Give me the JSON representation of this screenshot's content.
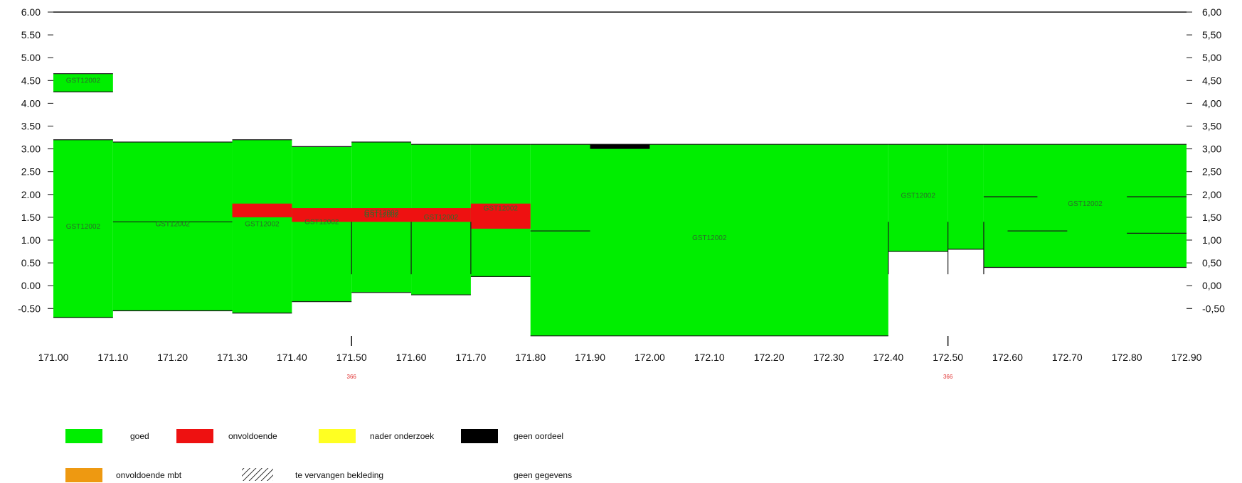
{
  "chart_data": {
    "type": "bar",
    "x_ticks": [
      "171.00",
      "171.10",
      "171.20",
      "171.30",
      "171.40",
      "171.50",
      "171.60",
      "171.70",
      "171.80",
      "171.90",
      "172.00",
      "172.10",
      "172.20",
      "172.30",
      "172.40",
      "172.50",
      "172.60",
      "172.70",
      "172.80",
      "172.90"
    ],
    "y_ticks_left": [
      "6.00",
      "5.50",
      "5.00",
      "4.50",
      "4.00",
      "3.50",
      "3.00",
      "2.50",
      "2.00",
      "1.50",
      "1.00",
      "0.50",
      "0.00",
      "-0.50"
    ],
    "y_ticks_right": [
      "6,00",
      "5,50",
      "5,00",
      "4,50",
      "4,00",
      "3,50",
      "3,00",
      "2,50",
      "2,00",
      "1,50",
      "1,00",
      "0,50",
      "0,00",
      "-0,50"
    ],
    "xlim": [
      171.0,
      172.9
    ],
    "ylim": [
      -0.5,
      6.0
    ],
    "markers": [
      {
        "x": 171.5,
        "label": "366"
      },
      {
        "x": 172.5,
        "label": "366"
      }
    ],
    "segments": [
      {
        "x0": 171.0,
        "x1": 171.1,
        "y0": 4.25,
        "y1": 4.65,
        "status": "goed",
        "label": "GST12002"
      },
      {
        "x0": 171.0,
        "x1": 171.1,
        "y0": -0.7,
        "y1": 3.2,
        "status": "goed",
        "label": "GST12002"
      },
      {
        "x0": 171.1,
        "x1": 171.3,
        "y0": -0.55,
        "y1": 3.15,
        "status": "goed",
        "label": "GST12002"
      },
      {
        "x0": 171.3,
        "x1": 171.4,
        "y0": -0.6,
        "y1": 3.2,
        "status": "goed",
        "label": "GST12002"
      },
      {
        "x0": 171.4,
        "x1": 171.5,
        "y0": -0.35,
        "y1": 3.05,
        "status": "goed",
        "label": "GST12002"
      },
      {
        "x0": 171.5,
        "x1": 171.6,
        "y0": -0.15,
        "y1": 3.15,
        "status": "goed",
        "label": "GST12002"
      },
      {
        "x0": 171.6,
        "x1": 171.7,
        "y0": -0.2,
        "y1": 3.1,
        "status": "goed",
        "label": "GST12002"
      },
      {
        "x0": 171.7,
        "x1": 171.8,
        "y0": 0.2,
        "y1": 3.1,
        "status": "goed",
        "label": "GST12002"
      },
      {
        "x0": 171.8,
        "x1": 172.4,
        "y0": -1.1,
        "y1": 3.1,
        "status": "goed",
        "label": "GST12002"
      },
      {
        "x0": 172.4,
        "x1": 172.5,
        "y0": 0.75,
        "y1": 3.1,
        "status": "goed",
        "label": "GST12002"
      },
      {
        "x0": 172.5,
        "x1": 172.56,
        "y0": 0.8,
        "y1": 3.1,
        "status": "goed",
        "label": ""
      },
      {
        "x0": 172.56,
        "x1": 172.9,
        "y0": 0.4,
        "y1": 3.1,
        "status": "goed",
        "label": "GST12002"
      },
      {
        "x0": 171.3,
        "x1": 171.4,
        "y0": 1.5,
        "y1": 1.8,
        "status": "onvoldoende",
        "label": ""
      },
      {
        "x0": 171.4,
        "x1": 171.7,
        "y0": 1.4,
        "y1": 1.7,
        "status": "onvoldoende",
        "label": "GST12002"
      },
      {
        "x0": 171.7,
        "x1": 171.8,
        "y0": 1.25,
        "y1": 1.8,
        "status": "onvoldoende",
        "label": ""
      },
      {
        "x0": 171.9,
        "x1": 172.0,
        "y0": 3.0,
        "y1": 3.1,
        "status": "geen oordeel",
        "label": ""
      }
    ],
    "legend": [
      {
        "label": "goed",
        "color": "#00ee00",
        "kind": "swatch"
      },
      {
        "label": "onvoldoende",
        "color": "#ee1111",
        "kind": "swatch"
      },
      {
        "label": "nader onderzoek",
        "color": "#ffff22",
        "kind": "swatch"
      },
      {
        "label": "geen oordeel",
        "color": "#000000",
        "kind": "swatch"
      },
      {
        "label": "onvoldoende mbt",
        "color": "#ee9911",
        "kind": "swatch"
      },
      {
        "label": "te vervangen bekleding",
        "color": "#000000",
        "kind": "hatch"
      },
      {
        "label": "geen gegevens",
        "color": "#ffffff",
        "kind": "none"
      }
    ]
  }
}
